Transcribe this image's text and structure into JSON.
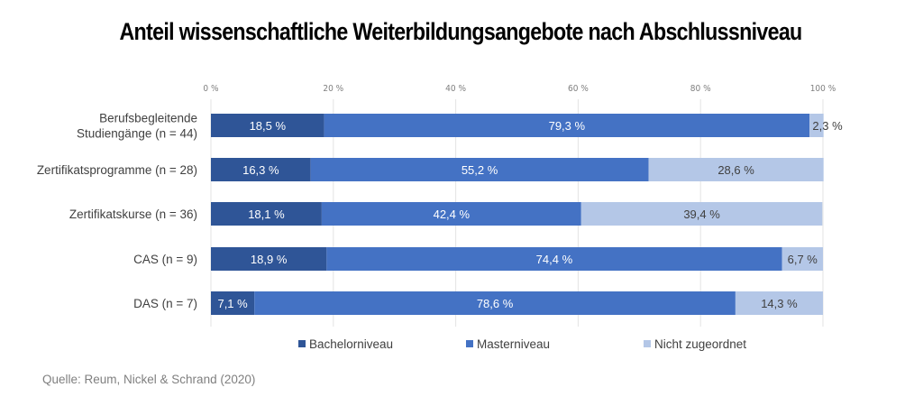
{
  "chart_data": {
    "type": "bar",
    "orientation": "horizontal",
    "stacked": true,
    "title": "Anteil wissenschaftliche Weiterbildungsangebote nach Abschlussniveau",
    "categories": [
      "Berufsbegleitende Studiengänge (n = 44)",
      "Zertifikatsprogramme (n = 28)",
      "Zertifikatskurse (n = 36)",
      "CAS (n = 9)",
      "DAS (n = 7)"
    ],
    "category_lines": [
      [
        "Berufsbegleitende",
        "Studiengänge (n = 44)"
      ],
      [
        "Zertifikatsprogramme (n = 28)"
      ],
      [
        "Zertifikatskurse (n = 36)"
      ],
      [
        "CAS (n = 9)"
      ],
      [
        "DAS (n = 7)"
      ]
    ],
    "series": [
      {
        "name": "Bachelorniveau",
        "color": "#2f5597",
        "label_color": "#ffffff",
        "values": [
          18.5,
          16.3,
          18.1,
          18.9,
          7.1
        ],
        "labels": [
          "18,5 %",
          "16,3 %",
          "18,1 %",
          "18,9 %",
          "7,1 %"
        ]
      },
      {
        "name": "Masterniveau",
        "color": "#4472c4",
        "label_color": "#ffffff",
        "values": [
          79.3,
          55.2,
          42.4,
          74.4,
          78.6
        ],
        "labels": [
          "79,3 %",
          "55,2 %",
          "42,4 %",
          "74,4 %",
          "78,6 %"
        ]
      },
      {
        "name": "Nicht zugeordnet",
        "color": "#b4c7e7",
        "label_color": "#404040",
        "values": [
          2.3,
          28.6,
          39.4,
          6.7,
          14.3
        ],
        "labels": [
          "2,3 %",
          "28,6 %",
          "39,4 %",
          "6,7 %",
          "14,3 %"
        ]
      }
    ],
    "x_ticks": [
      0,
      20,
      40,
      60,
      80,
      100
    ],
    "x_tick_labels": [
      "0 %",
      "20 %",
      "40 %",
      "60 %",
      "80 %",
      "100 %"
    ],
    "xlim": [
      0,
      100
    ],
    "xlabel": "",
    "ylabel": "",
    "grid": true,
    "axis_position": "top",
    "legend_position": "bottom"
  },
  "source": "Quelle: Reum, Nickel & Schrand (2020)"
}
